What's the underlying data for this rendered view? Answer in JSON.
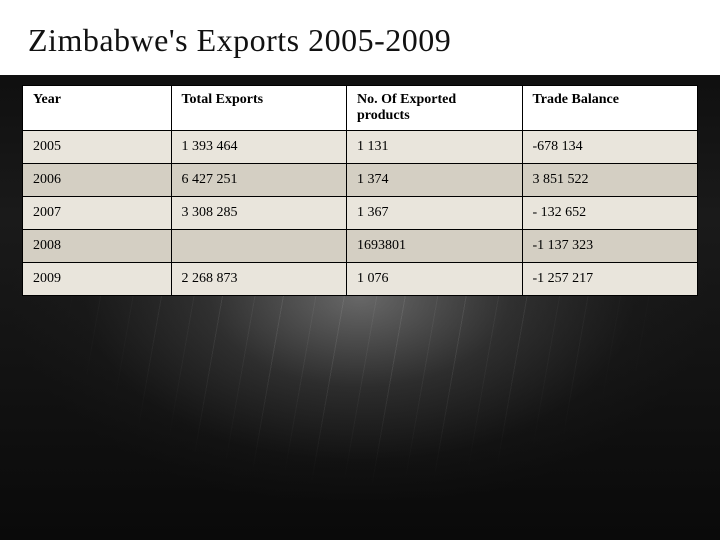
{
  "title": "Zimbabwe's Exports 2005-2009",
  "title_fontsize": 32,
  "table": {
    "header_fontsize": 14,
    "cell_fontsize": 14,
    "cell_padding_v": 8,
    "cell_padding_h": 10,
    "header_padding_v": 6,
    "columns": [
      "Year",
      "Total Exports",
      "No. Of Exported products",
      "Trade Balance"
    ],
    "col_widths_pct": [
      22,
      26,
      26,
      26
    ],
    "header_bg": "#ffffff",
    "row_odd_bg": "#e9e5dc",
    "row_even_bg": "#d4cfc3",
    "border_color": "#000000",
    "rows": [
      [
        "2005",
        "1 393 464",
        "1 131",
        "-678 134"
      ],
      [
        "2006",
        "6 427 251",
        "1 374",
        "3 851 522"
      ],
      [
        "2007",
        "3 308 285",
        "1 367",
        "- 132 652"
      ],
      [
        "2008",
        "",
        "1693801",
        "-1 137 323"
      ],
      [
        "2009",
        "2 268 873",
        "1 076",
        "-1 257 217"
      ]
    ]
  },
  "colors": {
    "slide_bg": "#000000",
    "title_bg": "#ffffff",
    "title_color": "#111111"
  }
}
